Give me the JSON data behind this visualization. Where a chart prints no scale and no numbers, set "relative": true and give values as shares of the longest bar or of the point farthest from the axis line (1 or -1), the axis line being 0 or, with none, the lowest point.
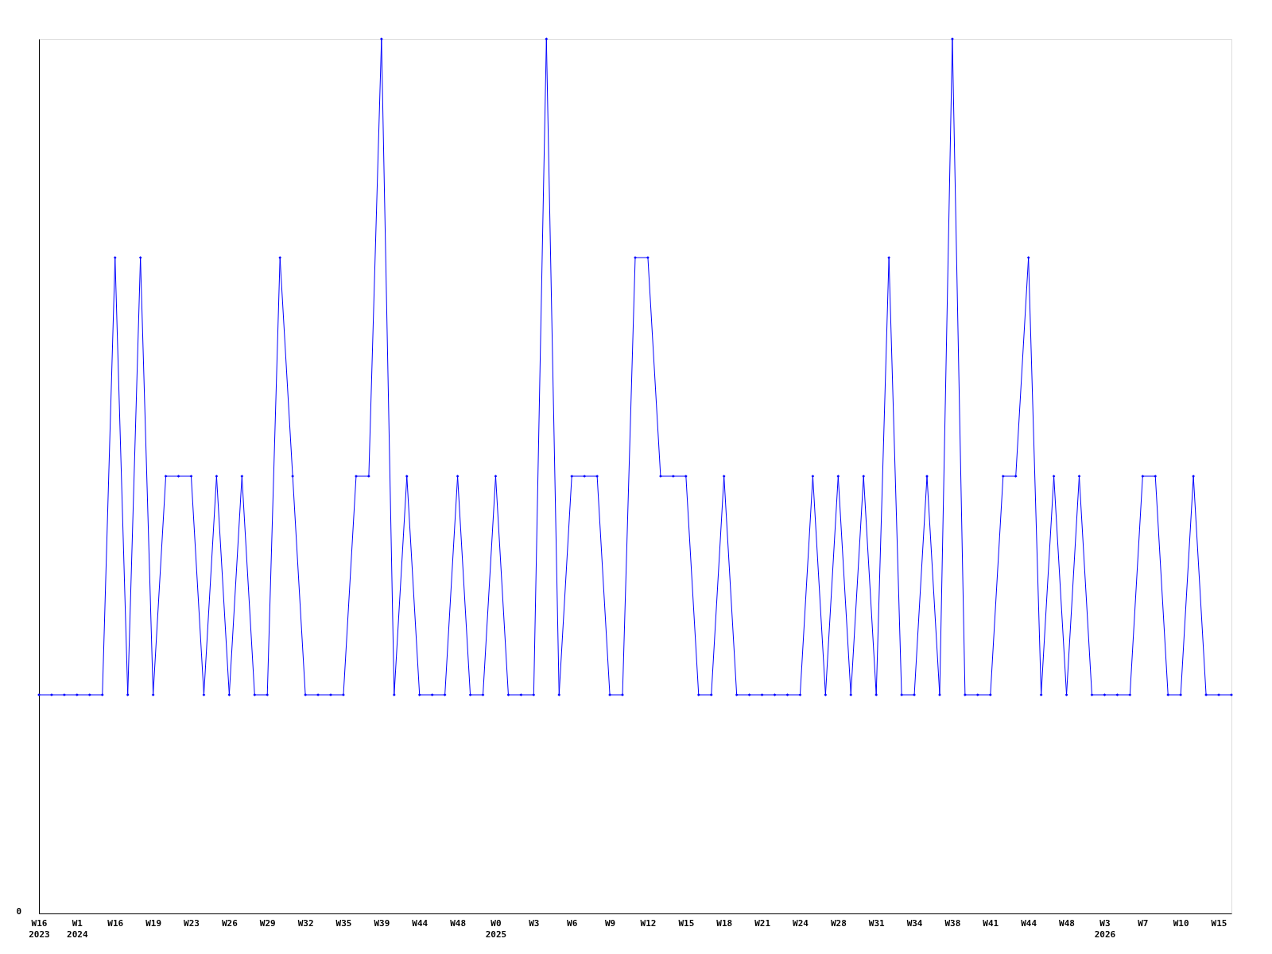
{
  "chart_data": {
    "type": "line",
    "relative": true,
    "color": "#0000ff",
    "marker": "diamond",
    "line_style": "solid",
    "grid": false,
    "categories": [
      "W16\n2023",
      null,
      null,
      "W1\n2024",
      null,
      null,
      "W16",
      null,
      null,
      "W19",
      null,
      null,
      "W23",
      null,
      null,
      "W26",
      null,
      null,
      "W29",
      null,
      null,
      "W32",
      null,
      null,
      "W35",
      null,
      null,
      "W39",
      null,
      null,
      "W44",
      null,
      null,
      "W48",
      null,
      null,
      "W0\n2025",
      null,
      null,
      "W3",
      null,
      null,
      "W6",
      null,
      null,
      "W9",
      null,
      null,
      "W12",
      null,
      null,
      "W15",
      null,
      null,
      "W18",
      null,
      null,
      "W21",
      null,
      null,
      "W24",
      null,
      null,
      "W28",
      null,
      null,
      "W31",
      null,
      null,
      "W34",
      null,
      null,
      "W38",
      null,
      null,
      "W41",
      null,
      null,
      "W44",
      null,
      null,
      "W48",
      null,
      null,
      "W3\n2026",
      null,
      null,
      "W7",
      null,
      null,
      "W10",
      null,
      null,
      "W15",
      null
    ],
    "values": [
      0.25,
      0.25,
      0.25,
      0.25,
      0.25,
      0.25,
      0.75,
      0.25,
      0.75,
      0.25,
      0.5,
      0.5,
      0.5,
      0.25,
      0.5,
      0.25,
      0.5,
      0.25,
      0.25,
      0.75,
      0.5,
      0.25,
      0.25,
      0.25,
      0.25,
      0.5,
      0.5,
      1,
      0.25,
      0.5,
      0.25,
      0.25,
      0.25,
      0.5,
      0.25,
      0.25,
      0.5,
      0.25,
      0.25,
      0.25,
      1,
      0.25,
      0.5,
      0.5,
      0.5,
      0.25,
      0.25,
      0.75,
      0.75,
      0.5,
      0.5,
      0.5,
      0.25,
      0.25,
      0.5,
      0.25,
      0.25,
      0.25,
      0.25,
      0.25,
      0.25,
      0.5,
      0.25,
      0.5,
      0.25,
      0.5,
      0.25,
      0.75,
      0.25,
      0.25,
      0.5,
      0.25,
      1,
      0.25,
      0.25,
      0.25,
      0.5,
      0.5,
      0.75,
      0.25,
      0.5,
      0.25,
      0.5,
      0.25,
      0.25,
      0.25,
      0.25,
      0.5,
      0.5,
      0.25,
      0.25,
      0.5,
      0.25,
      0.25,
      0.25
    ],
    "annotations": [
      "0"
    ]
  }
}
